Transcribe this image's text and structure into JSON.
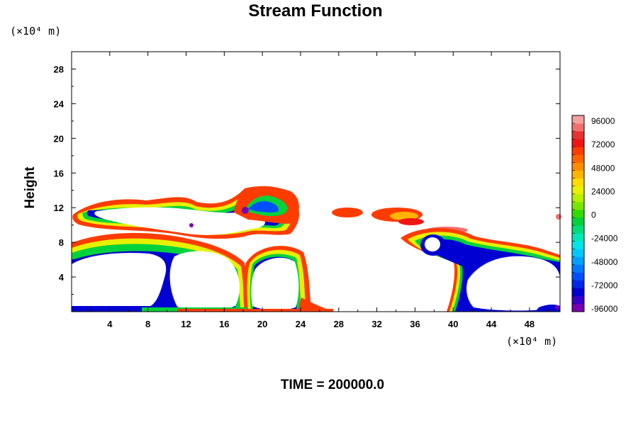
{
  "chart_data": {
    "type": "heatmap",
    "title": "Stream Function",
    "ylabel": "Height",
    "y_unit_label": "(×10⁴ m)",
    "x_unit_label": "(×10⁴ m)",
    "xlim": [
      0,
      51.2
    ],
    "ylim": [
      0,
      30
    ],
    "x_ticks": [
      "4",
      "8",
      "12",
      "16",
      "20",
      "24",
      "28",
      "32",
      "36",
      "40",
      "44",
      "48"
    ],
    "x_tick_values": [
      4,
      8,
      12,
      16,
      20,
      24,
      28,
      32,
      36,
      40,
      44,
      48
    ],
    "y_ticks": [
      "4",
      "8",
      "12",
      "16",
      "20",
      "24",
      "28"
    ],
    "y_tick_values": [
      4,
      8,
      12,
      16,
      20,
      24,
      28
    ],
    "colorbar": {
      "labels": [
        "96000",
        "72000",
        "48000",
        "24000",
        "0",
        "-24000",
        "-48000",
        "-72000",
        "-96000"
      ],
      "min": -100000,
      "max": 100000,
      "levels": 25,
      "colors": [
        "#7a00b4",
        "#3c00c8",
        "#0000d2",
        "#0028e6",
        "#0050ff",
        "#0078ff",
        "#00a0ff",
        "#00c8ff",
        "#00e6e6",
        "#00e6b4",
        "#00dc78",
        "#00d23c",
        "#32dc00",
        "#78e600",
        "#b4f000",
        "#e6f000",
        "#ffdc00",
        "#ffb400",
        "#ff8c00",
        "#ff6400",
        "#ff3c00",
        "#f01414",
        "#e63232",
        "#f07070",
        "#f5a0a0"
      ]
    },
    "footer": "TIME = 200000.0"
  }
}
